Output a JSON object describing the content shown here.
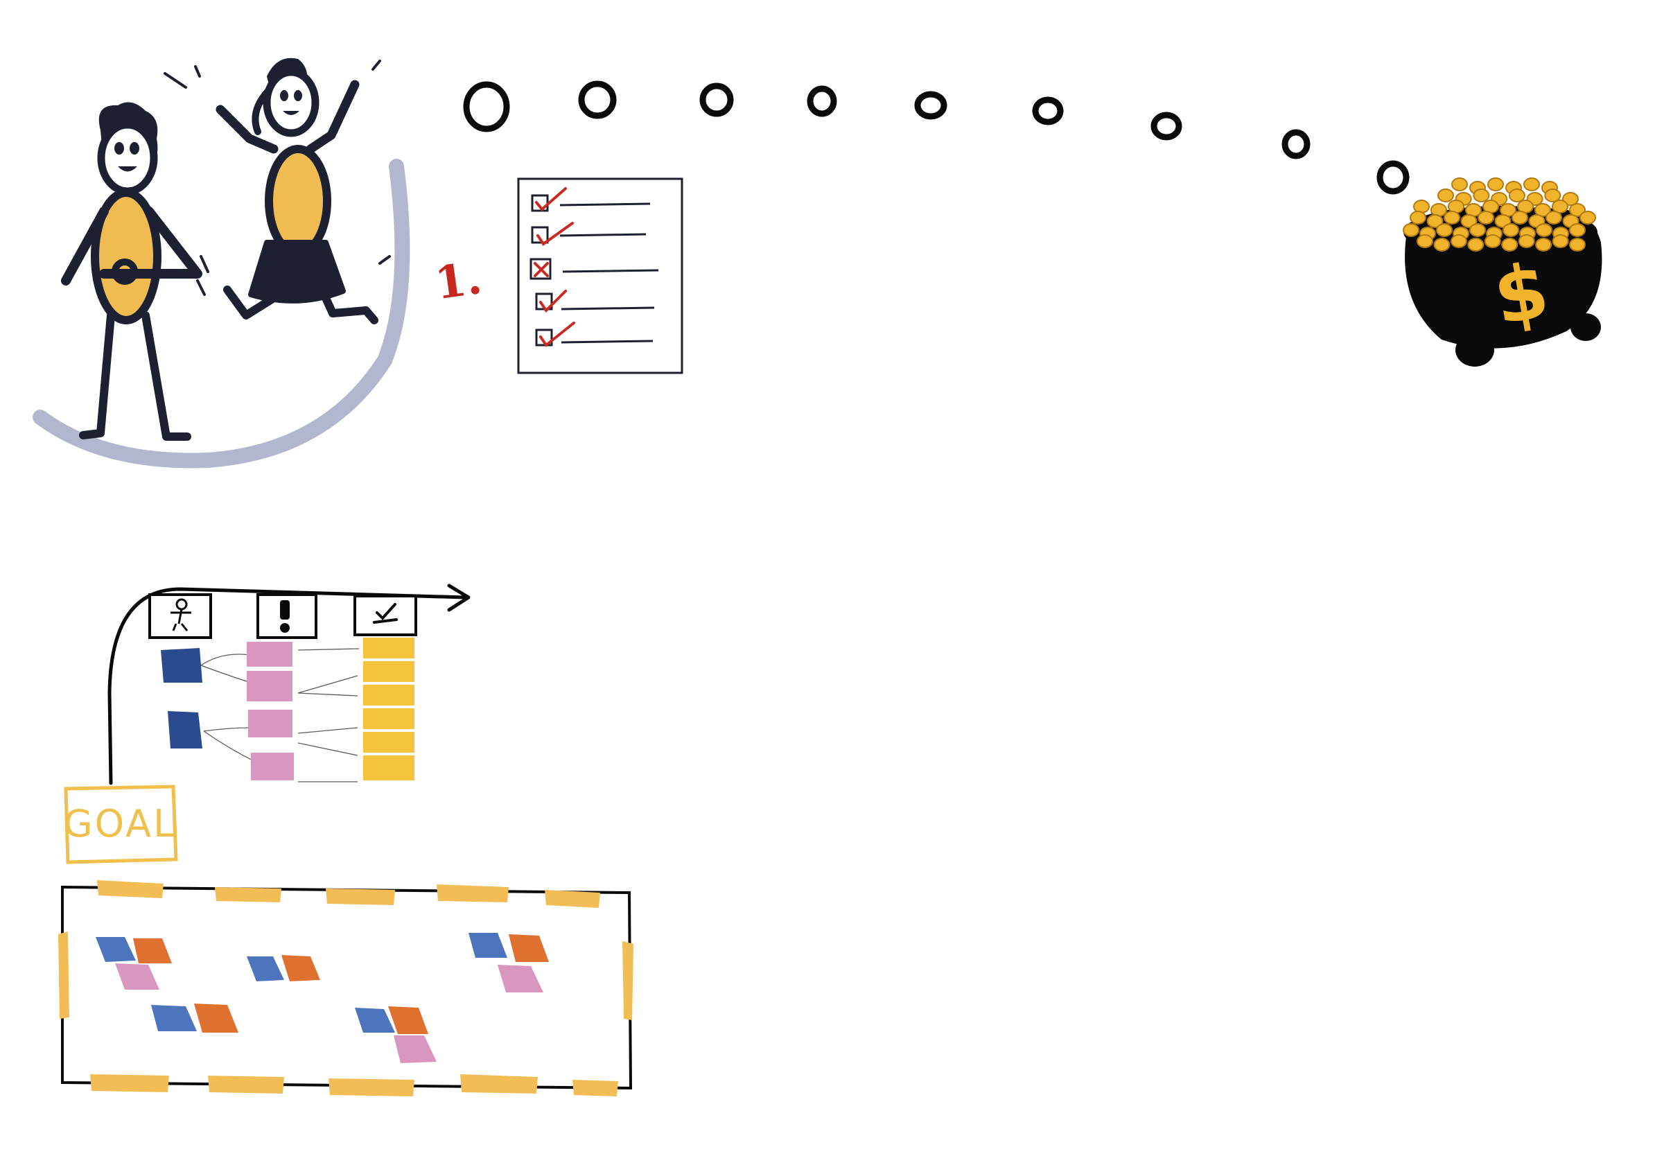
{
  "annotations": {
    "step_number": "1.",
    "goal_label": "GOAL",
    "pot_symbol": "$"
  },
  "colors": {
    "ink": "#1d2030",
    "figure_body": "#f0bb50",
    "ground_arc": "#b2b7cf",
    "checkmark": "#c92a22",
    "pot": "#0a0a0a",
    "coin": "#f2b32c",
    "sticky_navy": "#2b4b8f",
    "sticky_pink": "#d996bf",
    "sticky_yellow": "#f5c43c",
    "sticky_blue": "#4d75be",
    "sticky_orange": "#e0702d",
    "tape": "#f3bd55"
  },
  "icons": [
    "person-icon",
    "exclamation-icon",
    "checkmark-icon",
    "dollar-icon"
  ]
}
